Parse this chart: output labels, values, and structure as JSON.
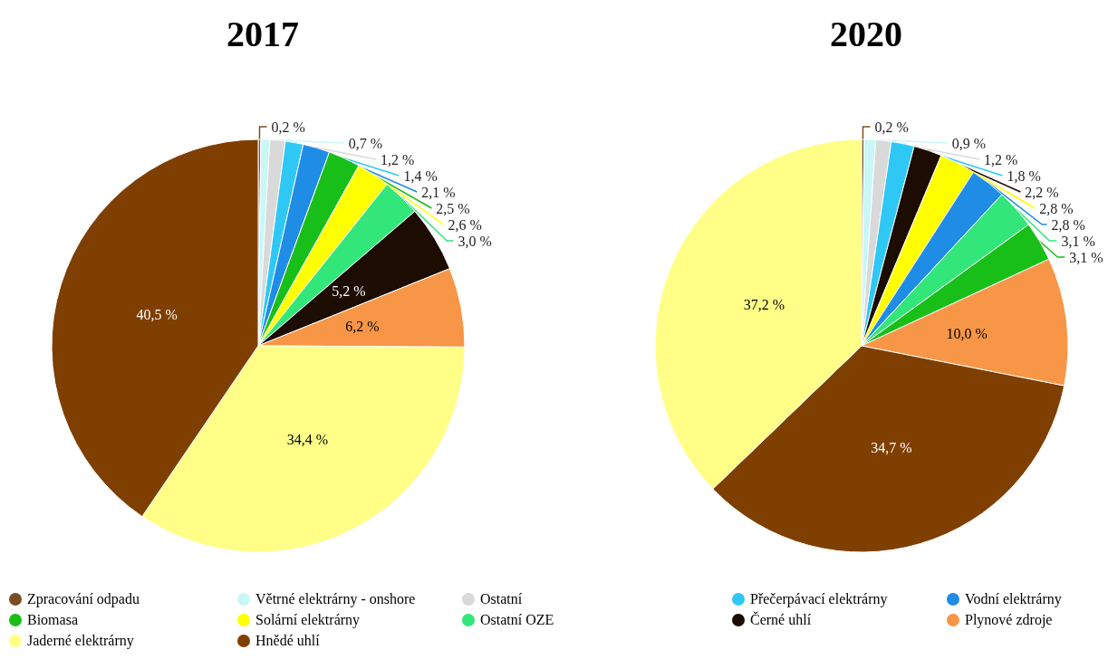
{
  "chart_data": [
    {
      "type": "pie",
      "title": "2017",
      "legend": "bottom",
      "categories": [
        "Zpracování odpadu",
        "Větrné elektrárny - onshore",
        "Ostatní",
        "Přečerpávací elektrárny",
        "Vodní elektrárny",
        "Biomasa",
        "Solární elektrárny",
        "Ostatní OZE",
        "Černé uhlí",
        "Plynové zdroje",
        "Jaderné elektrárny",
        "Hnědé uhlí"
      ],
      "values": [
        0.2,
        0.7,
        1.2,
        1.4,
        2.1,
        2.5,
        2.6,
        3.0,
        5.2,
        6.2,
        34.4,
        40.5
      ],
      "value_labels": [
        "0,2 %",
        "0,7 %",
        "1,2 %",
        "1,4 %",
        "2,1 %",
        "2,5 %",
        "2,6 %",
        "3,0 %",
        "5,2 %",
        "6,2 %",
        "34,4 %",
        "40,5 %"
      ],
      "colors": [
        "#7a4e22",
        "#c8f7f7",
        "#d9d9d9",
        "#2fc8f5",
        "#1f8ce6",
        "#19bf19",
        "#ffff00",
        "#33e67a",
        "#1c0c02",
        "#f79646",
        "#ffff88",
        "#7f3f00"
      ]
    },
    {
      "type": "pie",
      "title": "2020",
      "categories": [
        null,
        null,
        null,
        null,
        null,
        null,
        null,
        null,
        null,
        null,
        null,
        null
      ],
      "values": [
        0.2,
        0.9,
        1.2,
        1.8,
        2.2,
        2.8,
        2.8,
        3.1,
        3.1,
        10.0,
        34.7,
        37.2
      ],
      "value_labels": [
        "0,2 %",
        "0,9 %",
        "1,2 %",
        "1,8 %",
        "2,2 %",
        "2,8 %",
        "2,8 %",
        "3,1 %",
        "3,1 %",
        "10,0 %",
        "34,7 %",
        "37,2 %"
      ],
      "colors": [
        "#7a4e22",
        "#c8f7f7",
        "#d9d9d9",
        "#2fc8f5",
        "#1c0c02",
        "#ffff00",
        "#1f8ce6",
        "#33e67a",
        "#19bf19",
        "#f79646",
        "#7f3f00",
        "#ffff88"
      ]
    }
  ]
}
